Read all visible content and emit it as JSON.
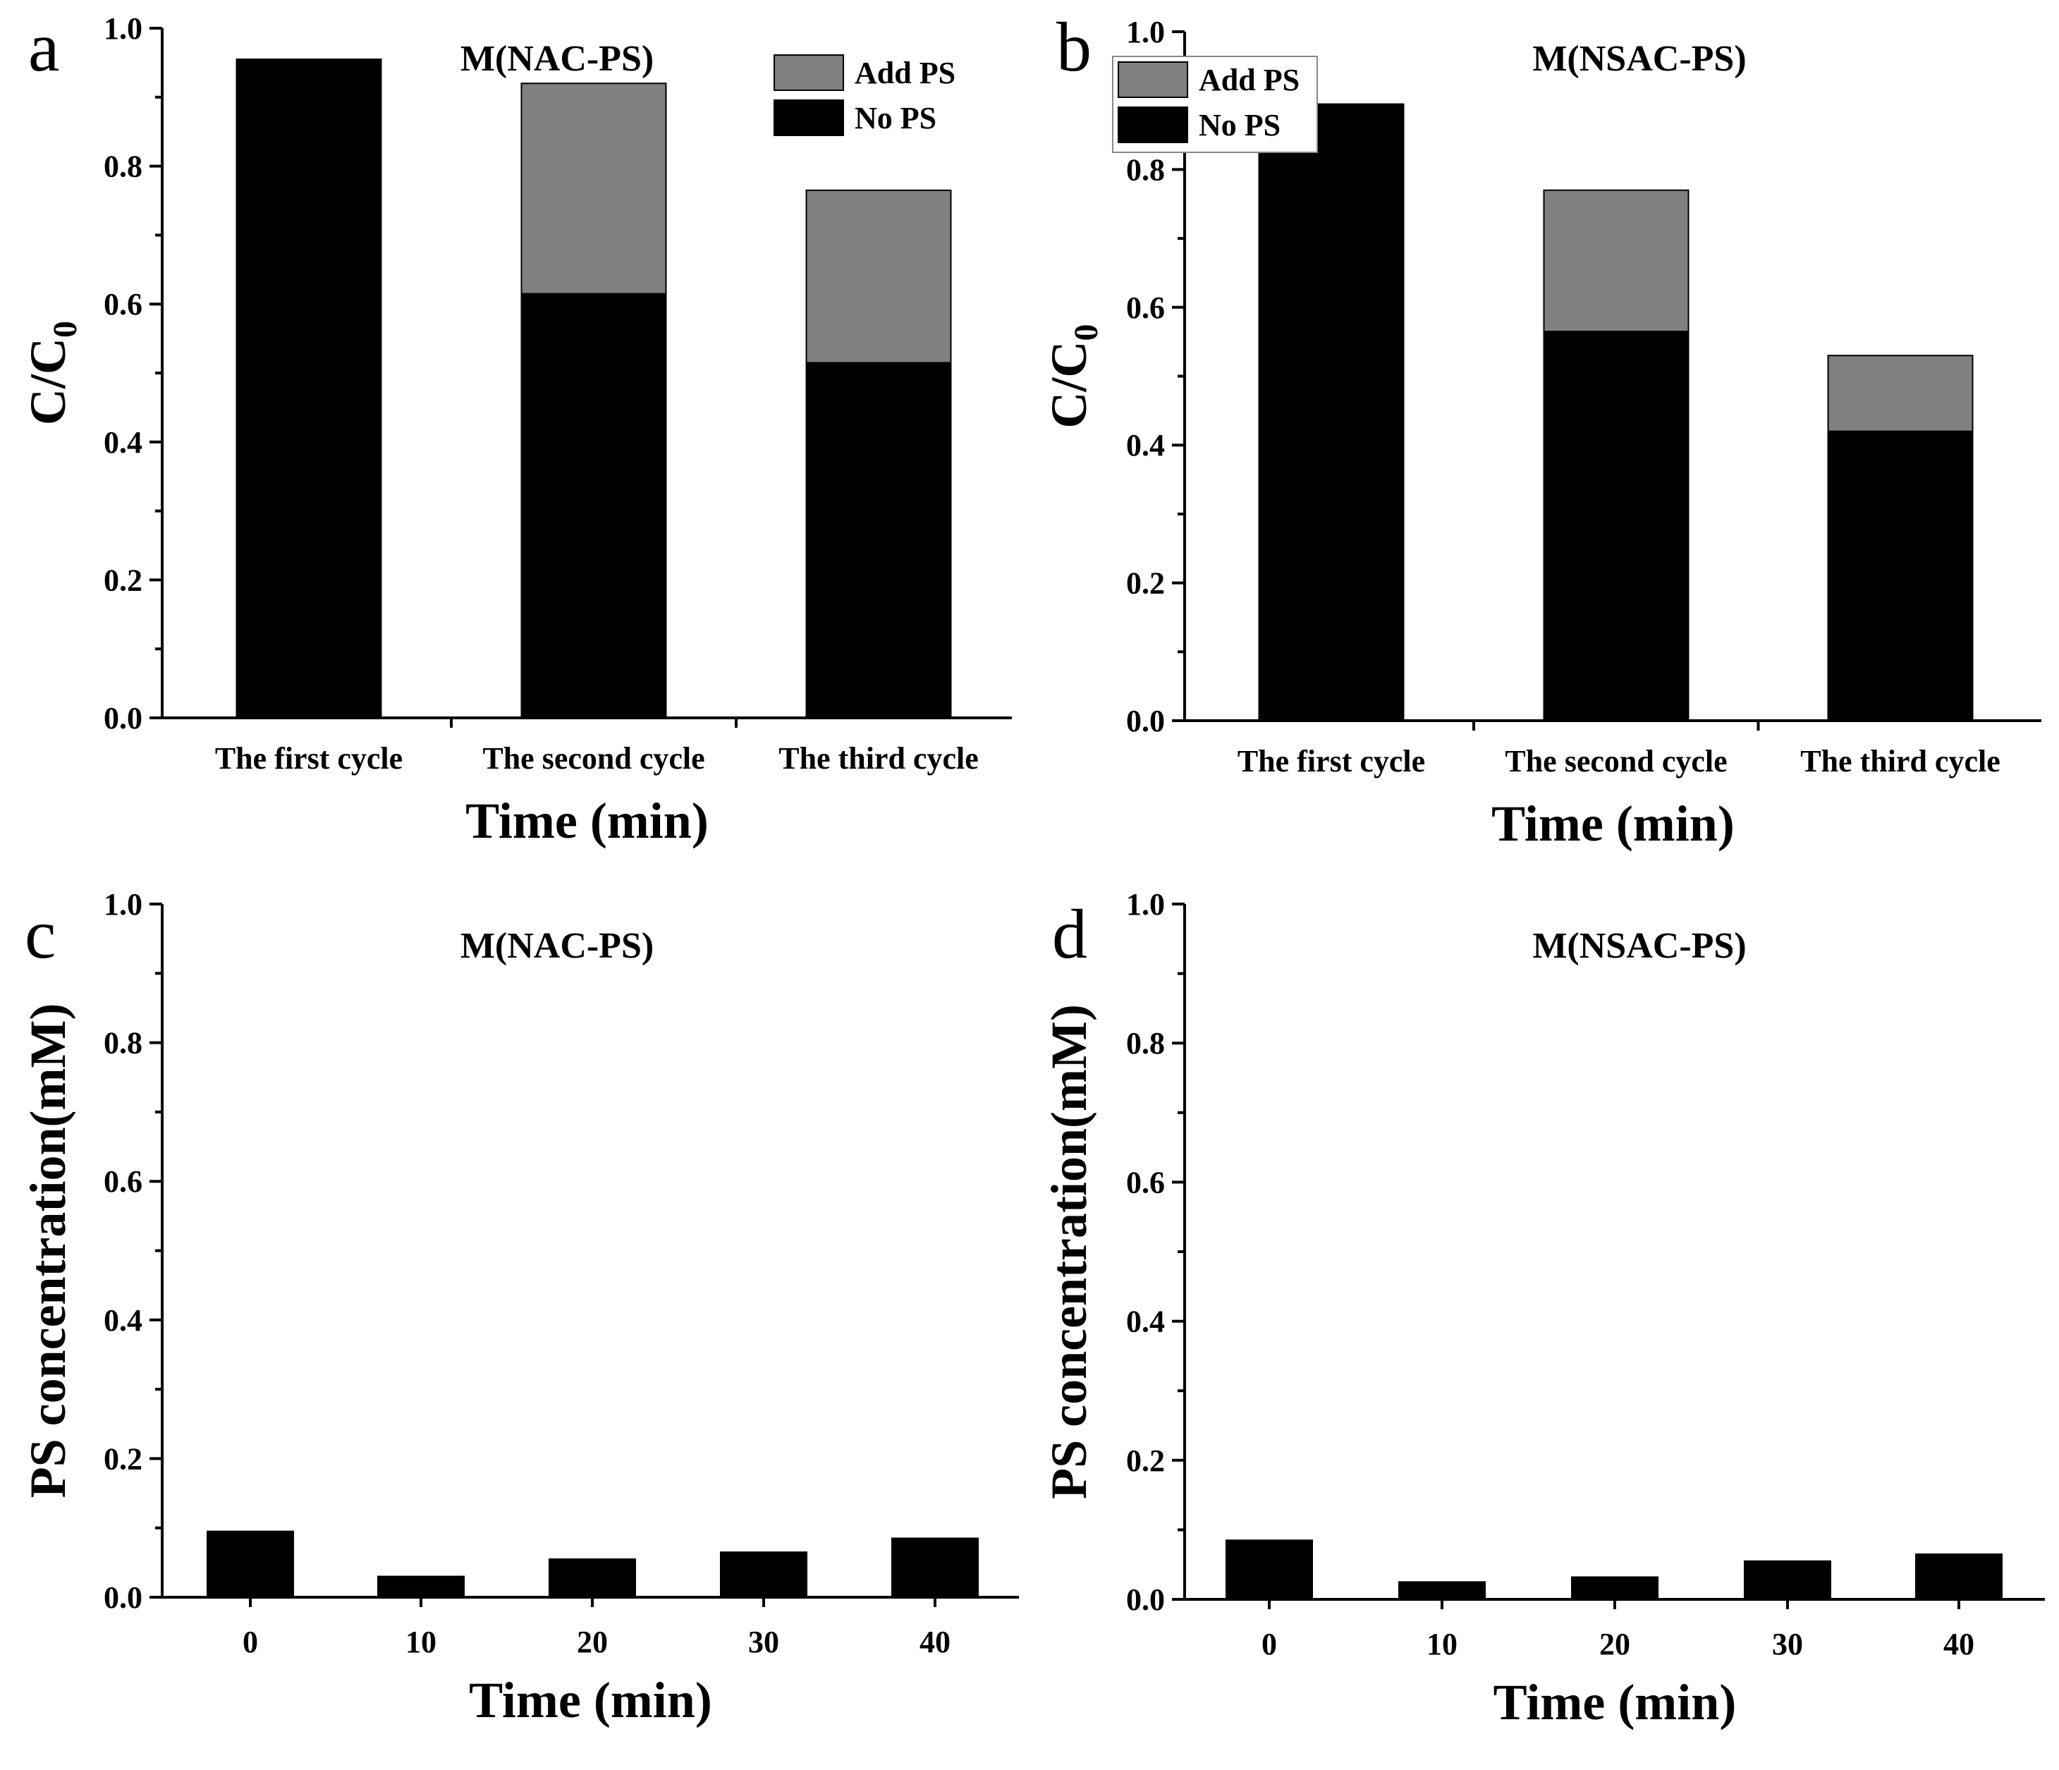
{
  "colors": {
    "no_ps": "#000000",
    "add_ps": "#808080"
  },
  "chart_data": [
    {
      "panel_label": "a",
      "type": "bar",
      "stacked": true,
      "title": "M(NAC-PS)",
      "xlabel": "Time (min)",
      "ylabel_main": "C/C",
      "ylabel_sub": "0",
      "ylim": [
        0,
        1.0
      ],
      "yticks": [
        "0.0",
        "0.2",
        "0.4",
        "0.6",
        "0.8",
        "1.0"
      ],
      "categories": [
        "The first cycle",
        "The second cycle",
        "The third cycle"
      ],
      "series": [
        {
          "name": "No PS",
          "values": [
            0.955,
            0.615,
            0.515
          ]
        },
        {
          "name": "Add PS",
          "values": [
            0,
            0.305,
            0.25
          ]
        }
      ],
      "legend": [
        "Add PS",
        "No PS"
      ],
      "legend_position": "top-right"
    },
    {
      "panel_label": "b",
      "type": "bar",
      "stacked": true,
      "title": "M(NSAC-PS)",
      "xlabel": "Time (min)",
      "ylabel_main": "C/C",
      "ylabel_sub": "0",
      "ylim": [
        0,
        1.0
      ],
      "yticks": [
        "0.0",
        "0.2",
        "0.4",
        "0.6",
        "0.8",
        "1.0"
      ],
      "categories": [
        "The first cycle",
        "The second cycle",
        "The third cycle"
      ],
      "series": [
        {
          "name": "No PS",
          "values": [
            0.895,
            0.565,
            0.42
          ]
        },
        {
          "name": "Add PS",
          "values": [
            0,
            0.205,
            0.11
          ]
        }
      ],
      "legend": [
        "Add PS",
        "No PS"
      ],
      "legend_position": "top-right"
    },
    {
      "panel_label": "c",
      "type": "bar",
      "stacked": false,
      "title": "M(NAC-PS)",
      "xlabel": "Time (min)",
      "ylabel_main": "PS concentration(mM)",
      "ylabel_sub": "",
      "ylim": [
        0,
        1.0
      ],
      "yticks": [
        "0.0",
        "0.2",
        "0.4",
        "0.6",
        "0.8",
        "1.0"
      ],
      "categories": [
        "0",
        "10",
        "20",
        "30",
        "40"
      ],
      "series": [
        {
          "name": "PS concentration",
          "values": [
            0.095,
            0.03,
            0.055,
            0.065,
            0.085
          ]
        }
      ],
      "legend": [],
      "legend_position": "none"
    },
    {
      "panel_label": "d",
      "type": "bar",
      "stacked": false,
      "title": "M(NSAC-PS)",
      "xlabel": "Time (min)",
      "ylabel_main": "PS concentration(mM)",
      "ylabel_sub": "",
      "ylim": [
        0,
        1.0
      ],
      "yticks": [
        "0.0",
        "0.2",
        "0.4",
        "0.6",
        "0.8",
        "1.0"
      ],
      "categories": [
        "0",
        "10",
        "20",
        "30",
        "40"
      ],
      "series": [
        {
          "name": "PS concentration",
          "values": [
            0.085,
            0.025,
            0.032,
            0.055,
            0.065
          ]
        }
      ],
      "legend": [],
      "legend_position": "none"
    }
  ]
}
